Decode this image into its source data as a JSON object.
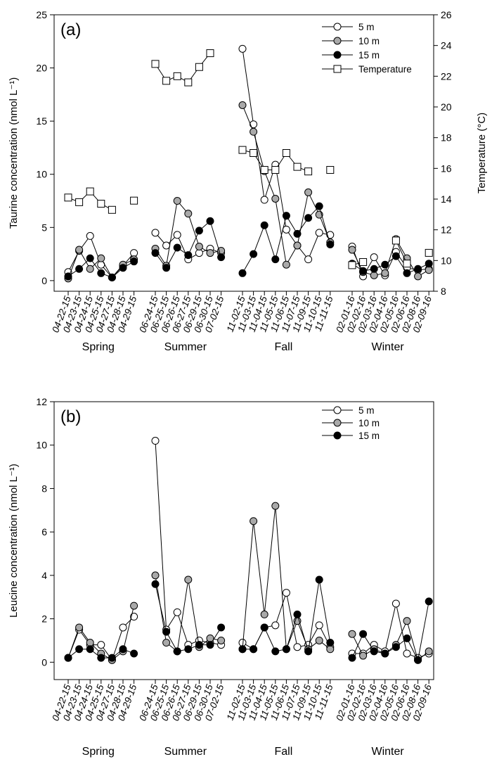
{
  "chart_data": [
    {
      "type": "line",
      "panel_label": "(a)",
      "ylabel": "Taurine concentration (nmol L⁻¹)",
      "y2label": "Temperature (°C)",
      "ylim": [
        -1,
        25
      ],
      "yticks": [
        0,
        5,
        10,
        15,
        20,
        25
      ],
      "y2lim": [
        8,
        26
      ],
      "y2ticks": [
        8,
        10,
        12,
        14,
        16,
        18,
        20,
        22,
        24,
        26
      ],
      "groups": [
        {
          "season": "Spring",
          "dates": [
            "04-22-15",
            "04-23-15",
            "04-24-15",
            "04-25-15",
            "04-27-15",
            "04-28-15",
            "04-29-15"
          ]
        },
        {
          "season": "Summer",
          "dates": [
            "06-24-15",
            "06-25-15",
            "06-26-15",
            "06-27-15",
            "06-29-15",
            "06-30-15",
            "07-02-15"
          ]
        },
        {
          "season": "Fall",
          "dates": [
            "11-02-15",
            "11-03-15",
            "11-04-15",
            "11-05-15",
            "11-06-15",
            "11-07-15",
            "11-09-15",
            "11-10-15",
            "11-11-15"
          ]
        },
        {
          "season": "Winter",
          "dates": [
            "02-01-16",
            "02-02-16",
            "02-03-16",
            "02-04-16",
            "02-05-16",
            "02-06-16",
            "02-08-16",
            "02-09-16"
          ]
        }
      ],
      "legend": {
        "position": "top-right"
      },
      "series": [
        {
          "name": "5 m",
          "marker": "circle",
          "fill": "#ffffff",
          "axis": "left",
          "values": [
            [
              0.8,
              2.8,
              4.2,
              1.5,
              0.3,
              1.4,
              2.6
            ],
            [
              4.5,
              3.3,
              4.3,
              2.0,
              2.6,
              3.0,
              2.6
            ],
            [
              21.8,
              14.7,
              7.6,
              10.9,
              4.8,
              3.3,
              2.0,
              4.5,
              4.3
            ],
            [
              3.2,
              0.4,
              2.2,
              0.5,
              2.7,
              1.2,
              1.0,
              1.1
            ]
          ]
        },
        {
          "name": "10 m",
          "marker": "circle",
          "fill": "#a9a9a9",
          "axis": "left",
          "values": [
            [
              0.2,
              2.9,
              1.1,
              2.1,
              0.3,
              1.5,
              2.0
            ],
            [
              3.0,
              1.4,
              7.5,
              6.3,
              3.2,
              2.6,
              2.8
            ],
            [
              16.5,
              14.0,
              10.3,
              7.7,
              1.5,
              3.3,
              8.3,
              6.2,
              3.6
            ],
            [
              2.9,
              0.8,
              0.5,
              0.7,
              3.9,
              2.1,
              0.4,
              1.0
            ]
          ]
        },
        {
          "name": "15 m",
          "marker": "circle",
          "fill": "#000000",
          "axis": "left",
          "values": [
            [
              0.4,
              1.1,
              2.1,
              0.7,
              0.3,
              1.2,
              1.8
            ],
            [
              2.6,
              1.2,
              3.1,
              2.4,
              4.7,
              5.6,
              2.2
            ],
            [
              0.7,
              2.5,
              5.2,
              2.0,
              6.1,
              4.4,
              5.9,
              7.0,
              3.4
            ],
            [
              1.6,
              0.9,
              1.1,
              1.5,
              2.3,
              0.7,
              1.1,
              1.6
            ]
          ]
        },
        {
          "name": "Temperature",
          "marker": "square",
          "fill": "#ffffff",
          "axis": "right",
          "values": [
            [
              14.1,
              13.8,
              14.5,
              13.7,
              13.3,
              null,
              13.9
            ],
            [
              22.8,
              21.7,
              22.0,
              21.6,
              22.6,
              23.5,
              null
            ],
            [
              17.2,
              17.0,
              15.9,
              15.9,
              17.0,
              16.1,
              15.8,
              null,
              15.9
            ],
            [
              9.7,
              9.9,
              null,
              null,
              11.3,
              9.8,
              null,
              10.5
            ]
          ]
        }
      ]
    },
    {
      "type": "line",
      "panel_label": "(b)",
      "ylabel": "Leucine concentration (nmol L⁻¹)",
      "ylim": [
        -0.8,
        12
      ],
      "yticks": [
        0,
        2,
        4,
        6,
        8,
        10,
        12
      ],
      "groups": [
        {
          "season": "Spring",
          "dates": [
            "04-22-15",
            "04-23-15",
            "04-24-15",
            "04-25-15",
            "04-27-15",
            "04-28-15",
            "04-29-15"
          ]
        },
        {
          "season": "Summer",
          "dates": [
            "06-24-15",
            "06-25-15",
            "06-26-15",
            "06-27-15",
            "06-29-15",
            "06-30-15",
            "07-02-15"
          ]
        },
        {
          "season": "Fall",
          "dates": [
            "11-02-15",
            "11-03-15",
            "11-04-15",
            "11-05-15",
            "11-06-15",
            "11-07-15",
            "11-09-15",
            "11-10-15",
            "11-11-15"
          ]
        },
        {
          "season": "Winter",
          "dates": [
            "02-01-16",
            "02-02-16",
            "02-03-16",
            "02-04-16",
            "02-05-16",
            "02-06-16",
            "02-08-16",
            "02-09-16"
          ]
        }
      ],
      "legend": {
        "position": "top-right"
      },
      "series": [
        {
          "name": "5 m",
          "marker": "circle",
          "fill": "#ffffff",
          "axis": "left",
          "values": [
            [
              0.2,
              1.5,
              0.8,
              0.8,
              0.1,
              1.6,
              2.1
            ],
            [
              10.2,
              1.5,
              2.3,
              0.8,
              1.0,
              0.9,
              0.8
            ],
            [
              0.9,
              0.6,
              1.6,
              1.7,
              3.2,
              0.7,
              0.8,
              1.7,
              0.7
            ],
            [
              0.4,
              0.4,
              0.8,
              0.5,
              2.7,
              0.4,
              0.2,
              0.4
            ]
          ]
        },
        {
          "name": "10 m",
          "marker": "circle",
          "fill": "#a9a9a9",
          "axis": "left",
          "values": [
            [
              0.2,
              1.6,
              0.9,
              0.4,
              0.1,
              0.5,
              2.6
            ],
            [
              4.0,
              0.9,
              0.5,
              3.8,
              0.7,
              1.1,
              1.0
            ],
            [
              0.6,
              6.5,
              2.2,
              7.2,
              0.6,
              1.9,
              0.6,
              1.0,
              0.6
            ],
            [
              1.3,
              0.3,
              0.6,
              0.4,
              0.8,
              1.9,
              0.1,
              0.5
            ]
          ]
        },
        {
          "name": "15 m",
          "marker": "circle",
          "fill": "#000000",
          "axis": "left",
          "values": [
            [
              0.2,
              0.6,
              0.6,
              0.2,
              0.2,
              0.6,
              0.4
            ],
            [
              3.6,
              1.4,
              0.5,
              0.6,
              0.8,
              0.8,
              1.6
            ],
            [
              0.6,
              0.6,
              1.6,
              0.5,
              0.6,
              2.2,
              0.5,
              3.8,
              0.9
            ],
            [
              0.2,
              1.3,
              0.5,
              0.4,
              0.7,
              1.1,
              0.1,
              2.8
            ]
          ]
        }
      ]
    }
  ]
}
